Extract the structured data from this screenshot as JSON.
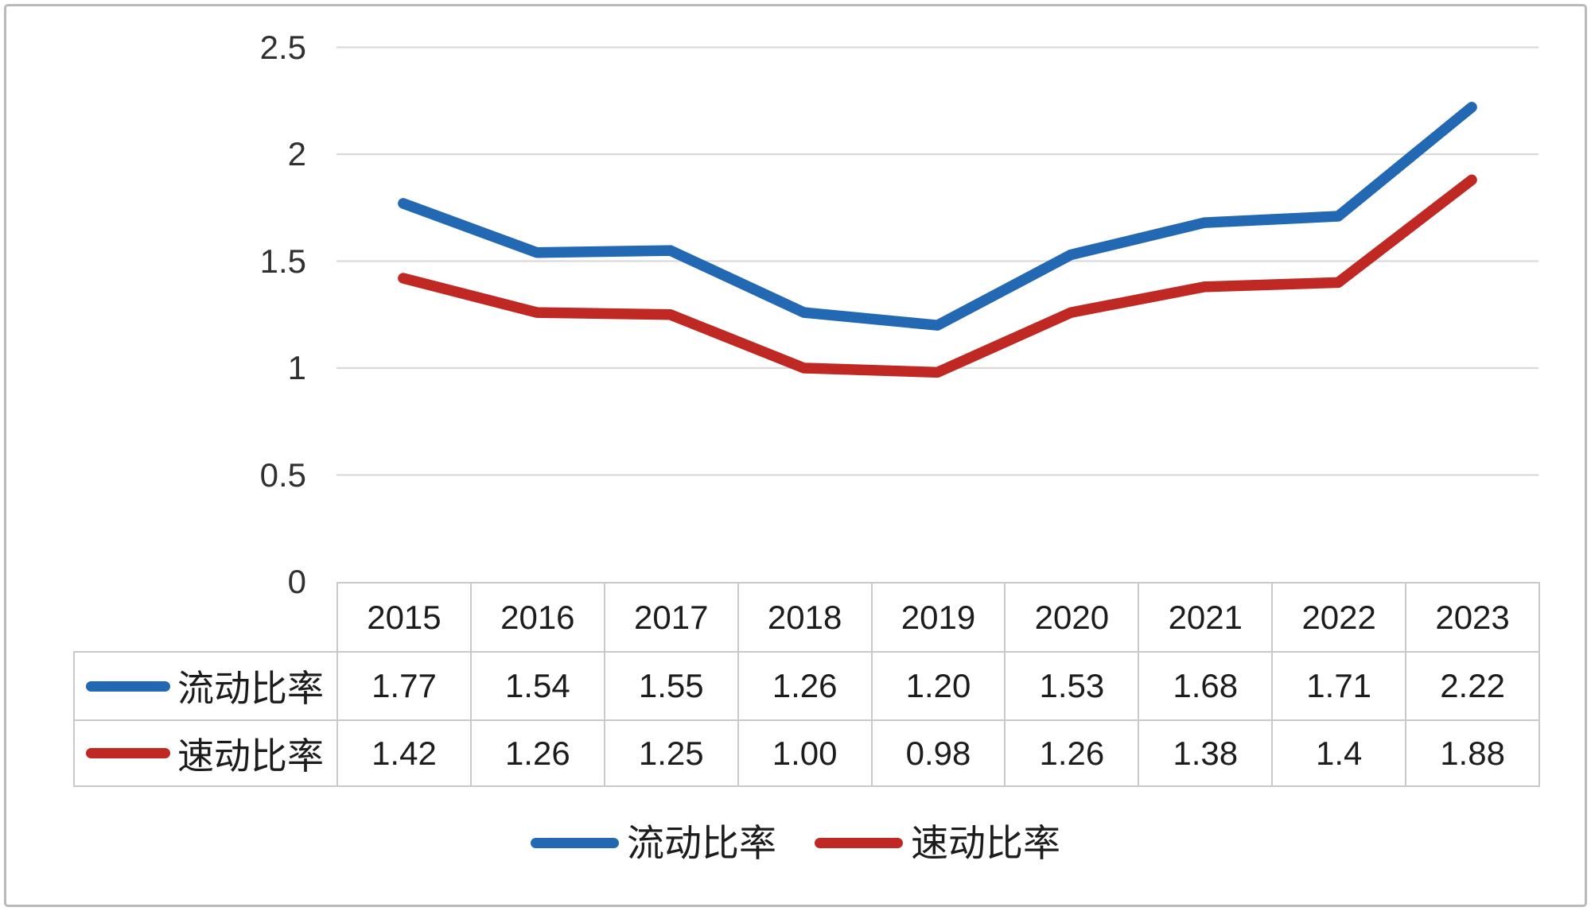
{
  "chart_data": {
    "type": "line",
    "categories": [
      "2015",
      "2016",
      "2017",
      "2018",
      "2019",
      "2020",
      "2021",
      "2022",
      "2023"
    ],
    "series": [
      {
        "name": "流动比率",
        "color": "#2368B2",
        "values": [
          1.77,
          1.54,
          1.55,
          1.26,
          1.2,
          1.53,
          1.68,
          1.71,
          2.22
        ],
        "values_display": [
          "1.77",
          "1.54",
          "1.55",
          "1.26",
          "1.20",
          "1.53",
          "1.68",
          "1.71",
          "2.22"
        ]
      },
      {
        "name": "速动比率",
        "color": "#C02824",
        "values": [
          1.42,
          1.26,
          1.25,
          1.0,
          0.98,
          1.26,
          1.38,
          1.4,
          1.88
        ],
        "values_display": [
          "1.42",
          "1.26",
          "1.25",
          "1.00",
          "0.98",
          "1.26",
          "1.38",
          "1.4",
          "1.88"
        ]
      }
    ],
    "y_ticks": [
      {
        "value": 0,
        "label": "0"
      },
      {
        "value": 0.5,
        "label": "0.5"
      },
      {
        "value": 1,
        "label": "1"
      },
      {
        "value": 1.5,
        "label": "1.5"
      },
      {
        "value": 2,
        "label": "2"
      },
      {
        "value": 2.5,
        "label": "2.5"
      }
    ],
    "ylim": [
      0,
      2.5
    ],
    "xlabel": "",
    "ylabel": "",
    "title": "",
    "grid": true,
    "legend_position": "bottom",
    "has_data_table": true
  },
  "legend": {
    "items": [
      {
        "label": "流动比率"
      },
      {
        "label": "速动比率"
      }
    ]
  },
  "styles": {
    "background": "#FFFFFF",
    "frame_border_color": "#B9B9B9",
    "gridline_color": "#D9D9D9",
    "table_border_color": "#C9C9C9",
    "axis_text_color": "#303030",
    "table_text_color": "#1C1C1C"
  }
}
